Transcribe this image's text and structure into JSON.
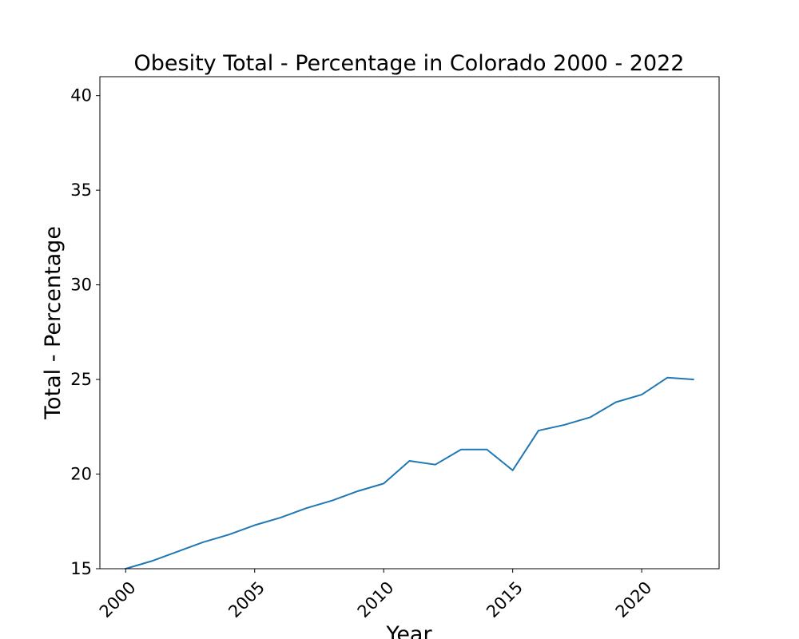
{
  "chart_data": {
    "type": "line",
    "title": "Obesity Total - Percentage in Colorado 2000 - 2022",
    "xlabel": "Year",
    "ylabel": "Total - Percentage",
    "xlim": [
      1999,
      2023
    ],
    "ylim": [
      15,
      41
    ],
    "xticks": [
      2000,
      2005,
      2010,
      2015,
      2020
    ],
    "yticks": [
      15,
      20,
      25,
      30,
      35,
      40
    ],
    "grid": false,
    "series": [
      {
        "color": "#1f77b4",
        "x": [
          2000,
          2001,
          2002,
          2003,
          2004,
          2005,
          2006,
          2007,
          2008,
          2009,
          2010,
          2011,
          2012,
          2013,
          2014,
          2015,
          2016,
          2017,
          2018,
          2019,
          2020,
          2021,
          2022
        ],
        "y": [
          15.0,
          15.4,
          15.9,
          16.4,
          16.8,
          17.3,
          17.7,
          18.2,
          18.6,
          19.1,
          19.5,
          20.7,
          20.5,
          21.3,
          21.3,
          20.2,
          22.3,
          22.6,
          23.0,
          23.8,
          24.2,
          25.1,
          25.0
        ]
      }
    ]
  }
}
